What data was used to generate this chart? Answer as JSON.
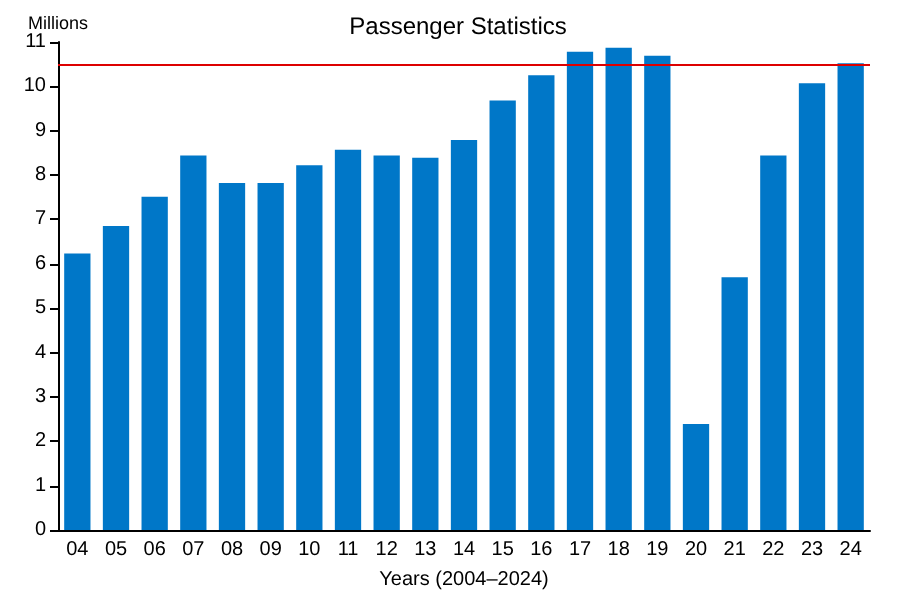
{
  "chart_data": {
    "type": "bar",
    "title": "Passenger Statistics",
    "ylabel": "Millions",
    "xlabel": "Years (2004–2024)",
    "categories": [
      "04",
      "05",
      "06",
      "07",
      "08",
      "09",
      "10",
      "11",
      "12",
      "13",
      "14",
      "15",
      "16",
      "17",
      "18",
      "19",
      "20",
      "21",
      "22",
      "23",
      "24"
    ],
    "values": [
      6.23,
      6.85,
      7.51,
      8.44,
      7.82,
      7.82,
      8.22,
      8.57,
      8.44,
      8.39,
      8.79,
      9.68,
      10.25,
      10.78,
      10.87,
      10.69,
      2.39,
      5.7,
      8.44,
      10.07,
      10.52
    ],
    "color": "#0077c8",
    "ylim": [
      0,
      11
    ],
    "yticks": [
      0,
      1,
      2,
      3,
      4,
      5,
      6,
      7,
      8,
      9,
      10,
      11
    ],
    "grid": false,
    "ref_lines": [
      {
        "axis": "y",
        "value": 10.5,
        "color": "#dd0000"
      }
    ]
  }
}
